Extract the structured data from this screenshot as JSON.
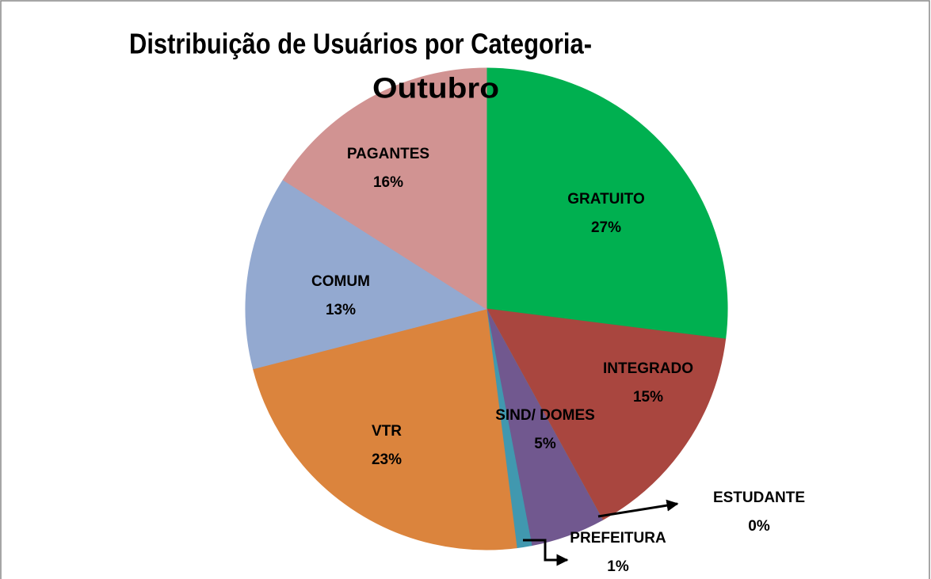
{
  "chart_data": {
    "type": "pie",
    "title": [
      "Distribuição de Usuários por Categoria-",
      "Outubro"
    ],
    "categories": [
      "GRATUITO",
      "INTEGRADO",
      "ESTUDANTE",
      "SIND/ DOMES",
      "PREFEITURA",
      "VTR",
      "COMUM",
      "PAGANTES"
    ],
    "values": [
      27,
      15,
      0,
      5,
      1,
      23,
      13,
      16
    ],
    "value_labels": [
      "27%",
      "15%",
      "0%",
      "5%",
      "1%",
      "23%",
      "13%",
      "16%"
    ],
    "colors": [
      "#00b050",
      "#a9463f",
      "#9bbb59",
      "#71588f",
      "#4198af",
      "#db843d",
      "#93a9d0",
      "#d19392"
    ]
  }
}
